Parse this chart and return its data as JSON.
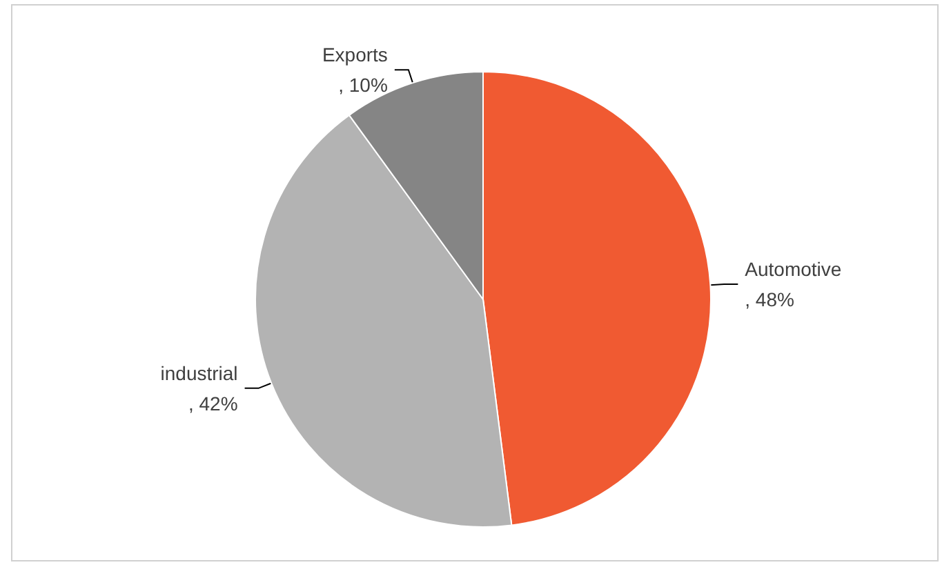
{
  "chart_data": {
    "type": "pie",
    "categories": [
      "Automotive",
      "industrial",
      "Exports"
    ],
    "values": [
      48,
      42,
      10
    ],
    "colors": [
      "#f05a32",
      "#b3b3b3",
      "#858585"
    ],
    "value_labels": [
      ", 48%",
      ", 42%",
      ", 10%"
    ],
    "legend": false
  }
}
